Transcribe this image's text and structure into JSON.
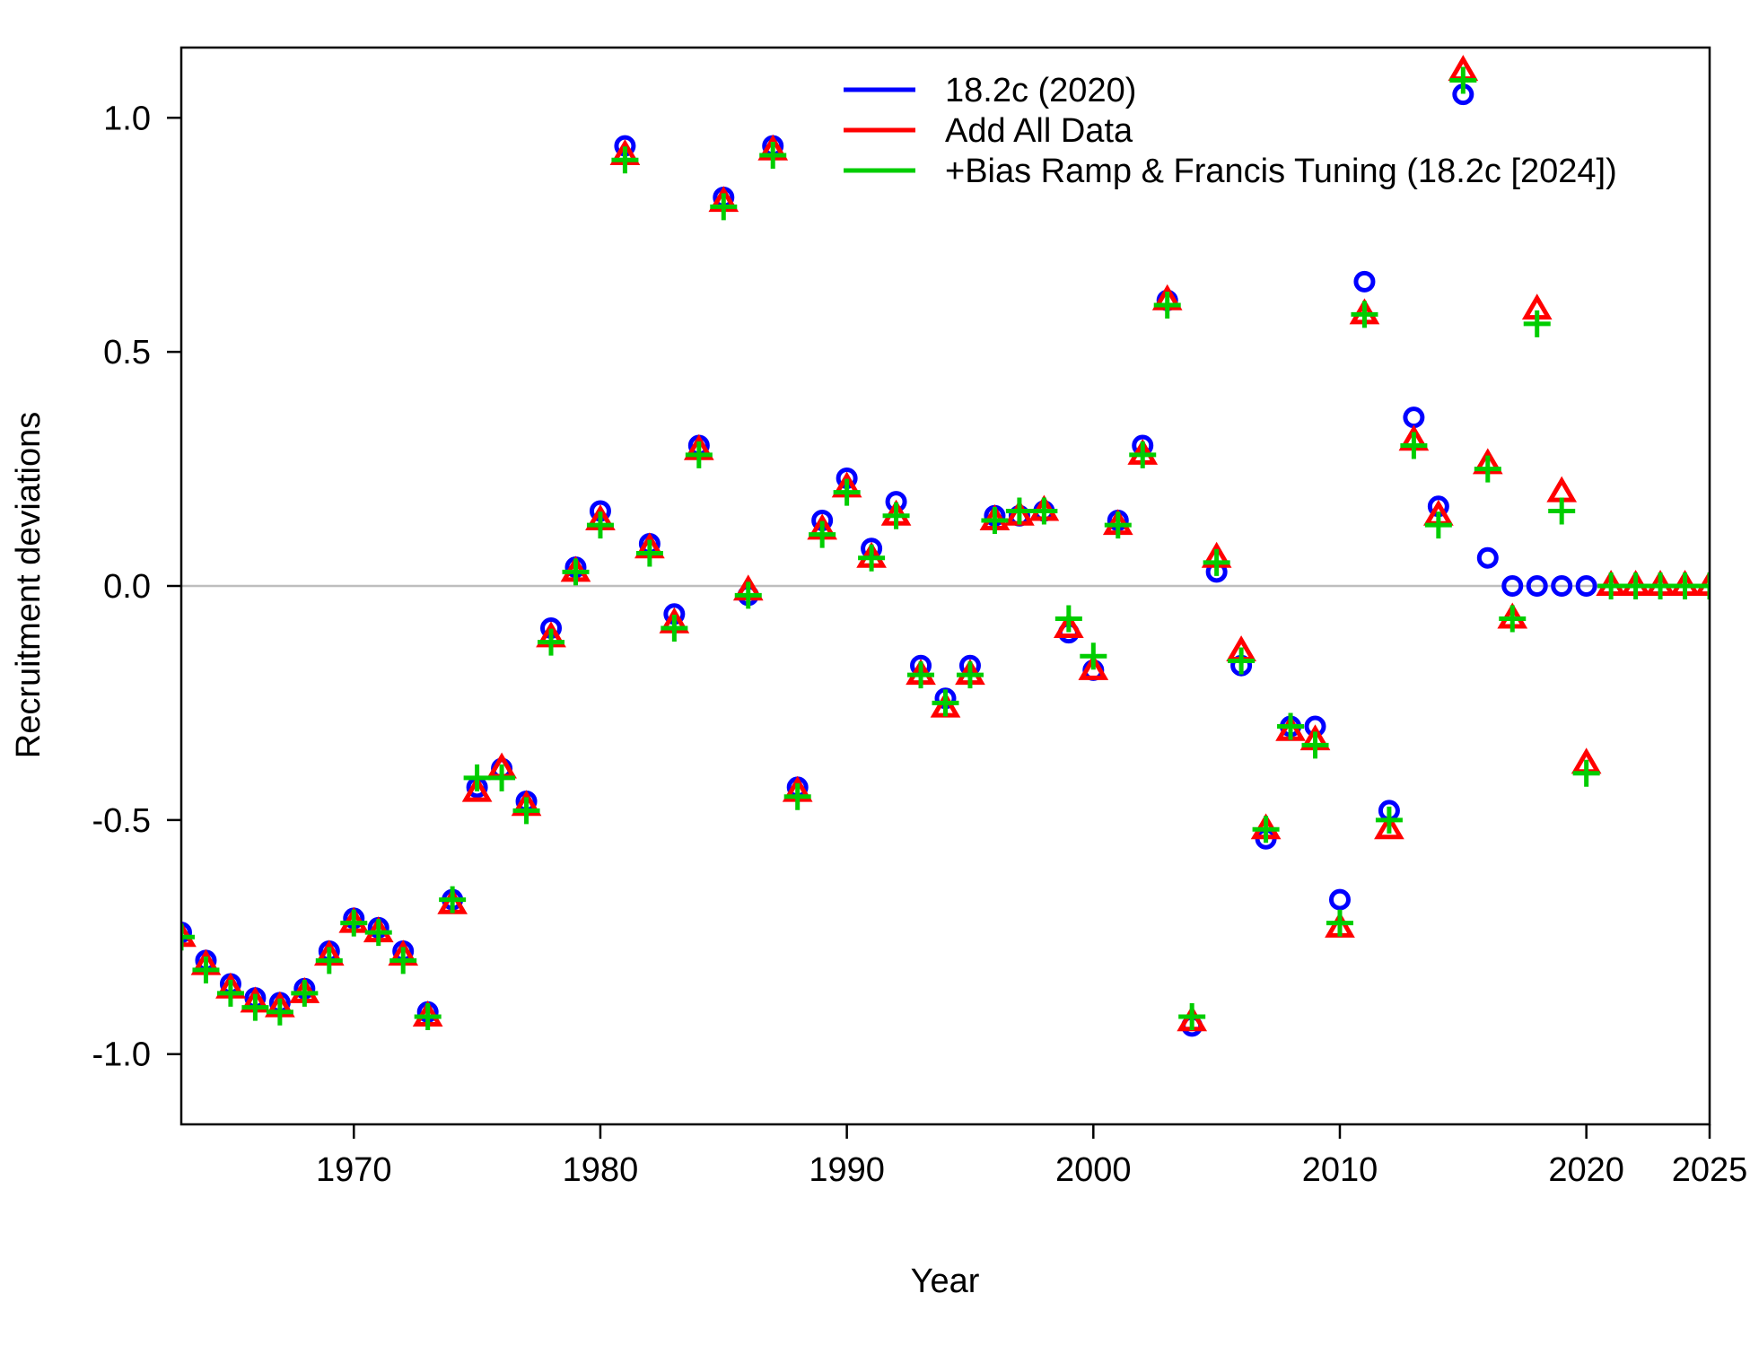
{
  "chart_data": {
    "type": "scatter",
    "xlabel": "Year",
    "ylabel": "Recruitment deviations",
    "xlim": [
      1963,
      2025
    ],
    "ylim": [
      -1.15,
      1.15
    ],
    "x_ticks": [
      1970,
      1980,
      1990,
      2000,
      2010,
      2020,
      2025
    ],
    "x_tick_labels": [
      "1970",
      "1980",
      "1990",
      "2000",
      "2010",
      "2020",
      "2025"
    ],
    "y_ticks": [
      -1.0,
      -0.5,
      0.0,
      0.5,
      1.0
    ],
    "y_tick_labels": [
      "-1.0",
      "-0.5",
      "0.0",
      "0.5",
      "1.0"
    ],
    "reference_line": {
      "y": 0,
      "color": "#bebebe"
    },
    "grid": false,
    "legend_position": "top-center",
    "series": [
      {
        "name": "18.2c (2020)",
        "color": "#0000ff",
        "marker": "circle",
        "x": [
          1963,
          1964,
          1965,
          1966,
          1967,
          1968,
          1969,
          1970,
          1971,
          1972,
          1973,
          1974,
          1975,
          1976,
          1977,
          1978,
          1979,
          1980,
          1981,
          1982,
          1983,
          1984,
          1985,
          1986,
          1987,
          1988,
          1989,
          1990,
          1991,
          1992,
          1993,
          1994,
          1995,
          1996,
          1997,
          1998,
          1999,
          2000,
          2001,
          2002,
          2003,
          2004,
          2005,
          2006,
          2007,
          2008,
          2009,
          2010,
          2011,
          2012,
          2013,
          2014,
          2015,
          2016,
          2017,
          2018,
          2019,
          2020
        ],
        "y": [
          -0.74,
          -0.8,
          -0.85,
          -0.88,
          -0.89,
          -0.86,
          -0.78,
          -0.71,
          -0.73,
          -0.78,
          -0.91,
          -0.67,
          -0.43,
          -0.39,
          -0.46,
          -0.09,
          0.04,
          0.16,
          0.94,
          0.09,
          -0.06,
          0.3,
          0.83,
          -0.02,
          0.94,
          -0.43,
          0.14,
          0.23,
          0.08,
          0.18,
          -0.17,
          -0.24,
          -0.17,
          0.15,
          0.15,
          0.16,
          -0.1,
          -0.18,
          0.14,
          0.3,
          0.61,
          -0.94,
          0.03,
          -0.17,
          -0.54,
          -0.3,
          -0.3,
          -0.67,
          0.65,
          -0.48,
          0.36,
          0.17,
          1.05,
          0.06,
          0.0,
          0.0,
          0.0,
          0.0
        ]
      },
      {
        "name": "Add All Data",
        "color": "#ff0000",
        "marker": "triangle",
        "x": [
          1963,
          1964,
          1965,
          1966,
          1967,
          1968,
          1969,
          1970,
          1971,
          1972,
          1973,
          1974,
          1975,
          1976,
          1977,
          1978,
          1979,
          1980,
          1981,
          1982,
          1983,
          1984,
          1985,
          1986,
          1987,
          1988,
          1989,
          1990,
          1991,
          1992,
          1993,
          1994,
          1995,
          1996,
          1997,
          1998,
          1999,
          2000,
          2001,
          2002,
          2003,
          2004,
          2005,
          2006,
          2007,
          2008,
          2009,
          2010,
          2011,
          2012,
          2013,
          2014,
          2015,
          2016,
          2017,
          2018,
          2019,
          2020,
          2021,
          2022,
          2023,
          2024,
          2025
        ],
        "y": [
          -0.75,
          -0.81,
          -0.86,
          -0.89,
          -0.9,
          -0.87,
          -0.79,
          -0.72,
          -0.74,
          -0.79,
          -0.92,
          -0.68,
          -0.44,
          -0.39,
          -0.47,
          -0.11,
          0.03,
          0.14,
          0.92,
          0.08,
          -0.08,
          0.29,
          0.82,
          -0.01,
          0.93,
          -0.44,
          0.12,
          0.21,
          0.06,
          0.15,
          -0.19,
          -0.26,
          -0.19,
          0.14,
          0.15,
          0.16,
          -0.09,
          -0.18,
          0.13,
          0.28,
          0.61,
          -0.93,
          0.06,
          -0.14,
          -0.52,
          -0.31,
          -0.33,
          -0.73,
          0.58,
          -0.52,
          0.31,
          0.15,
          1.1,
          0.26,
          -0.07,
          0.59,
          0.2,
          -0.38,
          0.0,
          0.0,
          0.0,
          0.0,
          0.0
        ]
      },
      {
        "name": "+Bias Ramp & Francis Tuning (18.2c [2024])",
        "color": "#00cd00",
        "marker": "plus",
        "x": [
          1963,
          1964,
          1965,
          1966,
          1967,
          1968,
          1969,
          1970,
          1971,
          1972,
          1973,
          1974,
          1975,
          1976,
          1977,
          1978,
          1979,
          1980,
          1981,
          1982,
          1983,
          1984,
          1985,
          1986,
          1987,
          1988,
          1989,
          1990,
          1991,
          1992,
          1993,
          1994,
          1995,
          1996,
          1997,
          1998,
          1999,
          2000,
          2001,
          2002,
          2003,
          2004,
          2005,
          2006,
          2007,
          2008,
          2009,
          2010,
          2011,
          2012,
          2013,
          2014,
          2015,
          2016,
          2017,
          2018,
          2019,
          2020,
          2021,
          2022,
          2023,
          2024,
          2025
        ],
        "y": [
          -0.75,
          -0.82,
          -0.87,
          -0.9,
          -0.91,
          -0.87,
          -0.8,
          -0.72,
          -0.74,
          -0.8,
          -0.92,
          -0.67,
          -0.41,
          -0.41,
          -0.48,
          -0.12,
          0.03,
          0.13,
          0.91,
          0.07,
          -0.09,
          0.28,
          0.81,
          -0.02,
          0.92,
          -0.45,
          0.11,
          0.2,
          0.06,
          0.15,
          -0.19,
          -0.25,
          -0.19,
          0.14,
          0.16,
          0.16,
          -0.07,
          -0.15,
          0.13,
          0.28,
          0.6,
          -0.92,
          0.05,
          -0.16,
          -0.52,
          -0.3,
          -0.34,
          -0.72,
          0.58,
          -0.5,
          0.3,
          0.13,
          1.08,
          0.25,
          -0.07,
          0.56,
          0.16,
          -0.4,
          0.0,
          0.0,
          0.0,
          0.0,
          0.0
        ]
      }
    ]
  }
}
